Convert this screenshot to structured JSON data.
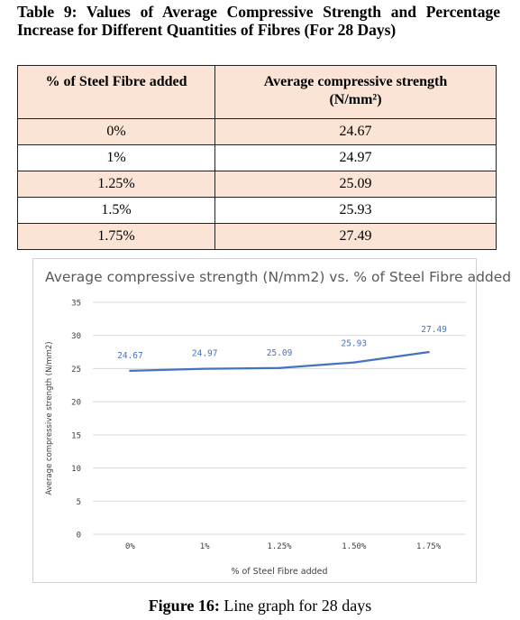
{
  "table": {
    "caption": "Table 9: Values of Average Compressive Strength and Percentage Increase for Different Quantities of  Fibres (For 28 Days)",
    "headers": [
      "% of Steel Fibre added",
      "Average compressive strength",
      "(N/mm²)"
    ],
    "rows": [
      [
        "0%",
        "24.67"
      ],
      [
        "1%",
        "24.97"
      ],
      [
        "1.25%",
        "25.09"
      ],
      [
        "1.5%",
        "25.93"
      ],
      [
        "1.75%",
        "27.49"
      ]
    ]
  },
  "chart_data": {
    "type": "line",
    "title": "Average compressive strength (N/mm2) vs. % of Steel Fibre added",
    "xlabel": "% of Steel Fibre added",
    "ylabel": "Average compressive strength (N/mm2)",
    "categories": [
      "0%",
      "1%",
      "1.25%",
      "1.50%",
      "1.75%"
    ],
    "series": [
      {
        "values": [
          24.67,
          24.97,
          25.09,
          25.93,
          27.49
        ],
        "color": "#4472c4"
      }
    ],
    "data_labels": [
      "24.67",
      "24.97",
      "25.09",
      "25.93",
      "27.49"
    ],
    "ylim": [
      0,
      35
    ],
    "yticks": [
      0,
      5,
      10,
      15,
      20,
      25,
      30,
      35
    ],
    "grid": true,
    "legend": "none"
  },
  "figure_caption": {
    "label": "Figure 16:",
    "text": "Line graph for 28 days"
  }
}
